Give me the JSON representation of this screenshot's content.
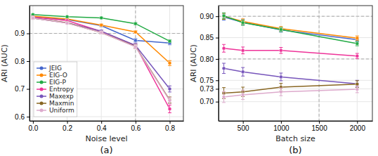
{
  "chart_data": [
    {
      "type": "line",
      "title": "(a)",
      "xlabel": "Noise level",
      "ylabel": "ARI (AUC)",
      "marker": "circle",
      "grid": true,
      "legend": "lower left",
      "xlim": [
        -0.02,
        0.88
      ],
      "ylim": [
        0.585,
        1.0
      ],
      "xticks": [
        {
          "value": 0.0,
          "label": "0.0"
        },
        0.2,
        0.4,
        0.6,
        0.8
      ],
      "yticks": [
        0.6,
        0.7,
        0.8,
        0.9
      ],
      "vlines": [
        0.6
      ],
      "hlines": [
        0.9
      ],
      "x": [
        0.0,
        0.2,
        0.4,
        0.6,
        0.8
      ],
      "series": [
        {
          "name": "JEIG",
          "color": "#4466cc",
          "values": [
            0.96,
            0.95,
            0.928,
            0.875,
            0.865
          ],
          "errors": [
            0.003,
            0.003,
            0.004,
            0.006,
            0.006
          ]
        },
        {
          "name": "EIG-O",
          "color": "#ff8800",
          "values": [
            0.962,
            0.952,
            0.93,
            0.905,
            0.793
          ],
          "errors": [
            0.003,
            0.003,
            0.004,
            0.005,
            0.009
          ]
        },
        {
          "name": "EIG-P",
          "color": "#22aa44",
          "values": [
            0.968,
            0.96,
            0.956,
            0.935,
            0.872
          ],
          "errors": [
            0.002,
            0.002,
            0.003,
            0.004,
            0.005
          ]
        },
        {
          "name": "Entropy",
          "color": "#ee3399",
          "values": [
            0.958,
            0.946,
            0.907,
            0.856,
            0.628
          ],
          "errors": [
            0.003,
            0.003,
            0.005,
            0.007,
            0.014
          ]
        },
        {
          "name": "Maxexp",
          "color": "#7755bb",
          "values": [
            0.955,
            0.938,
            0.908,
            0.857,
            0.7
          ],
          "errors": [
            0.003,
            0.003,
            0.005,
            0.007,
            0.011
          ]
        },
        {
          "name": "Maxmin",
          "color": "#886622",
          "values": [
            0.955,
            0.938,
            0.903,
            0.853,
            0.66
          ],
          "errors": [
            0.003,
            0.003,
            0.005,
            0.007,
            0.011
          ]
        },
        {
          "name": "Uniform",
          "color": "#ddaacc",
          "values": [
            0.955,
            0.937,
            0.903,
            0.852,
            0.658
          ],
          "errors": [
            0.003,
            0.003,
            0.005,
            0.007,
            0.011
          ]
        }
      ]
    },
    {
      "type": "line",
      "title": "(b)",
      "xlabel": "Batch size",
      "ylabel": "ARI (AUC)",
      "marker": "circle",
      "grid": true,
      "xlim": [
        180,
        2200
      ],
      "ylim": [
        0.655,
        0.925
      ],
      "xticks": [
        500,
        1000,
        1500,
        2000
      ],
      "yticks": [
        {
          "value": 0.7,
          "label": "0.70"
        },
        0.73,
        0.75,
        {
          "value": 0.8,
          "label": "0.80"
        },
        0.85,
        {
          "value": 0.9,
          "label": "0.90"
        }
      ],
      "vlines": [
        1500
      ],
      "hlines": [
        0.9,
        0.8
      ],
      "x": [
        250,
        500,
        1000,
        2000
      ],
      "series": [
        {
          "name": "JEIG",
          "color": "#4466cc",
          "values": [
            0.898,
            0.886,
            0.868,
            0.845
          ],
          "errors": [
            0.007,
            0.006,
            0.005,
            0.005
          ]
        },
        {
          "name": "EIG-O",
          "color": "#ff8800",
          "values": [
            0.9,
            0.888,
            0.871,
            0.849
          ],
          "errors": [
            0.007,
            0.006,
            0.005,
            0.005
          ]
        },
        {
          "name": "EIG-P",
          "color": "#22aa44",
          "values": [
            0.901,
            0.885,
            0.869,
            0.836
          ],
          "errors": [
            0.007,
            0.006,
            0.005,
            0.005
          ]
        },
        {
          "name": "Entropy",
          "color": "#ee3399",
          "values": [
            0.825,
            0.82,
            0.82,
            0.807
          ],
          "errors": [
            0.009,
            0.008,
            0.007,
            0.006
          ]
        },
        {
          "name": "Maxexp",
          "color": "#7755bb",
          "values": [
            0.778,
            0.77,
            0.758,
            0.742
          ],
          "errors": [
            0.012,
            0.01,
            0.009,
            0.008
          ]
        },
        {
          "name": "Maxmin",
          "color": "#886622",
          "values": [
            0.72,
            0.723,
            0.734,
            0.741
          ],
          "errors": [
            0.013,
            0.011,
            0.009,
            0.008
          ]
        },
        {
          "name": "Uniform",
          "color": "#ddaacc",
          "values": [
            0.711,
            0.716,
            0.723,
            0.729
          ],
          "errors": [
            0.013,
            0.011,
            0.009,
            0.008
          ]
        }
      ]
    }
  ]
}
